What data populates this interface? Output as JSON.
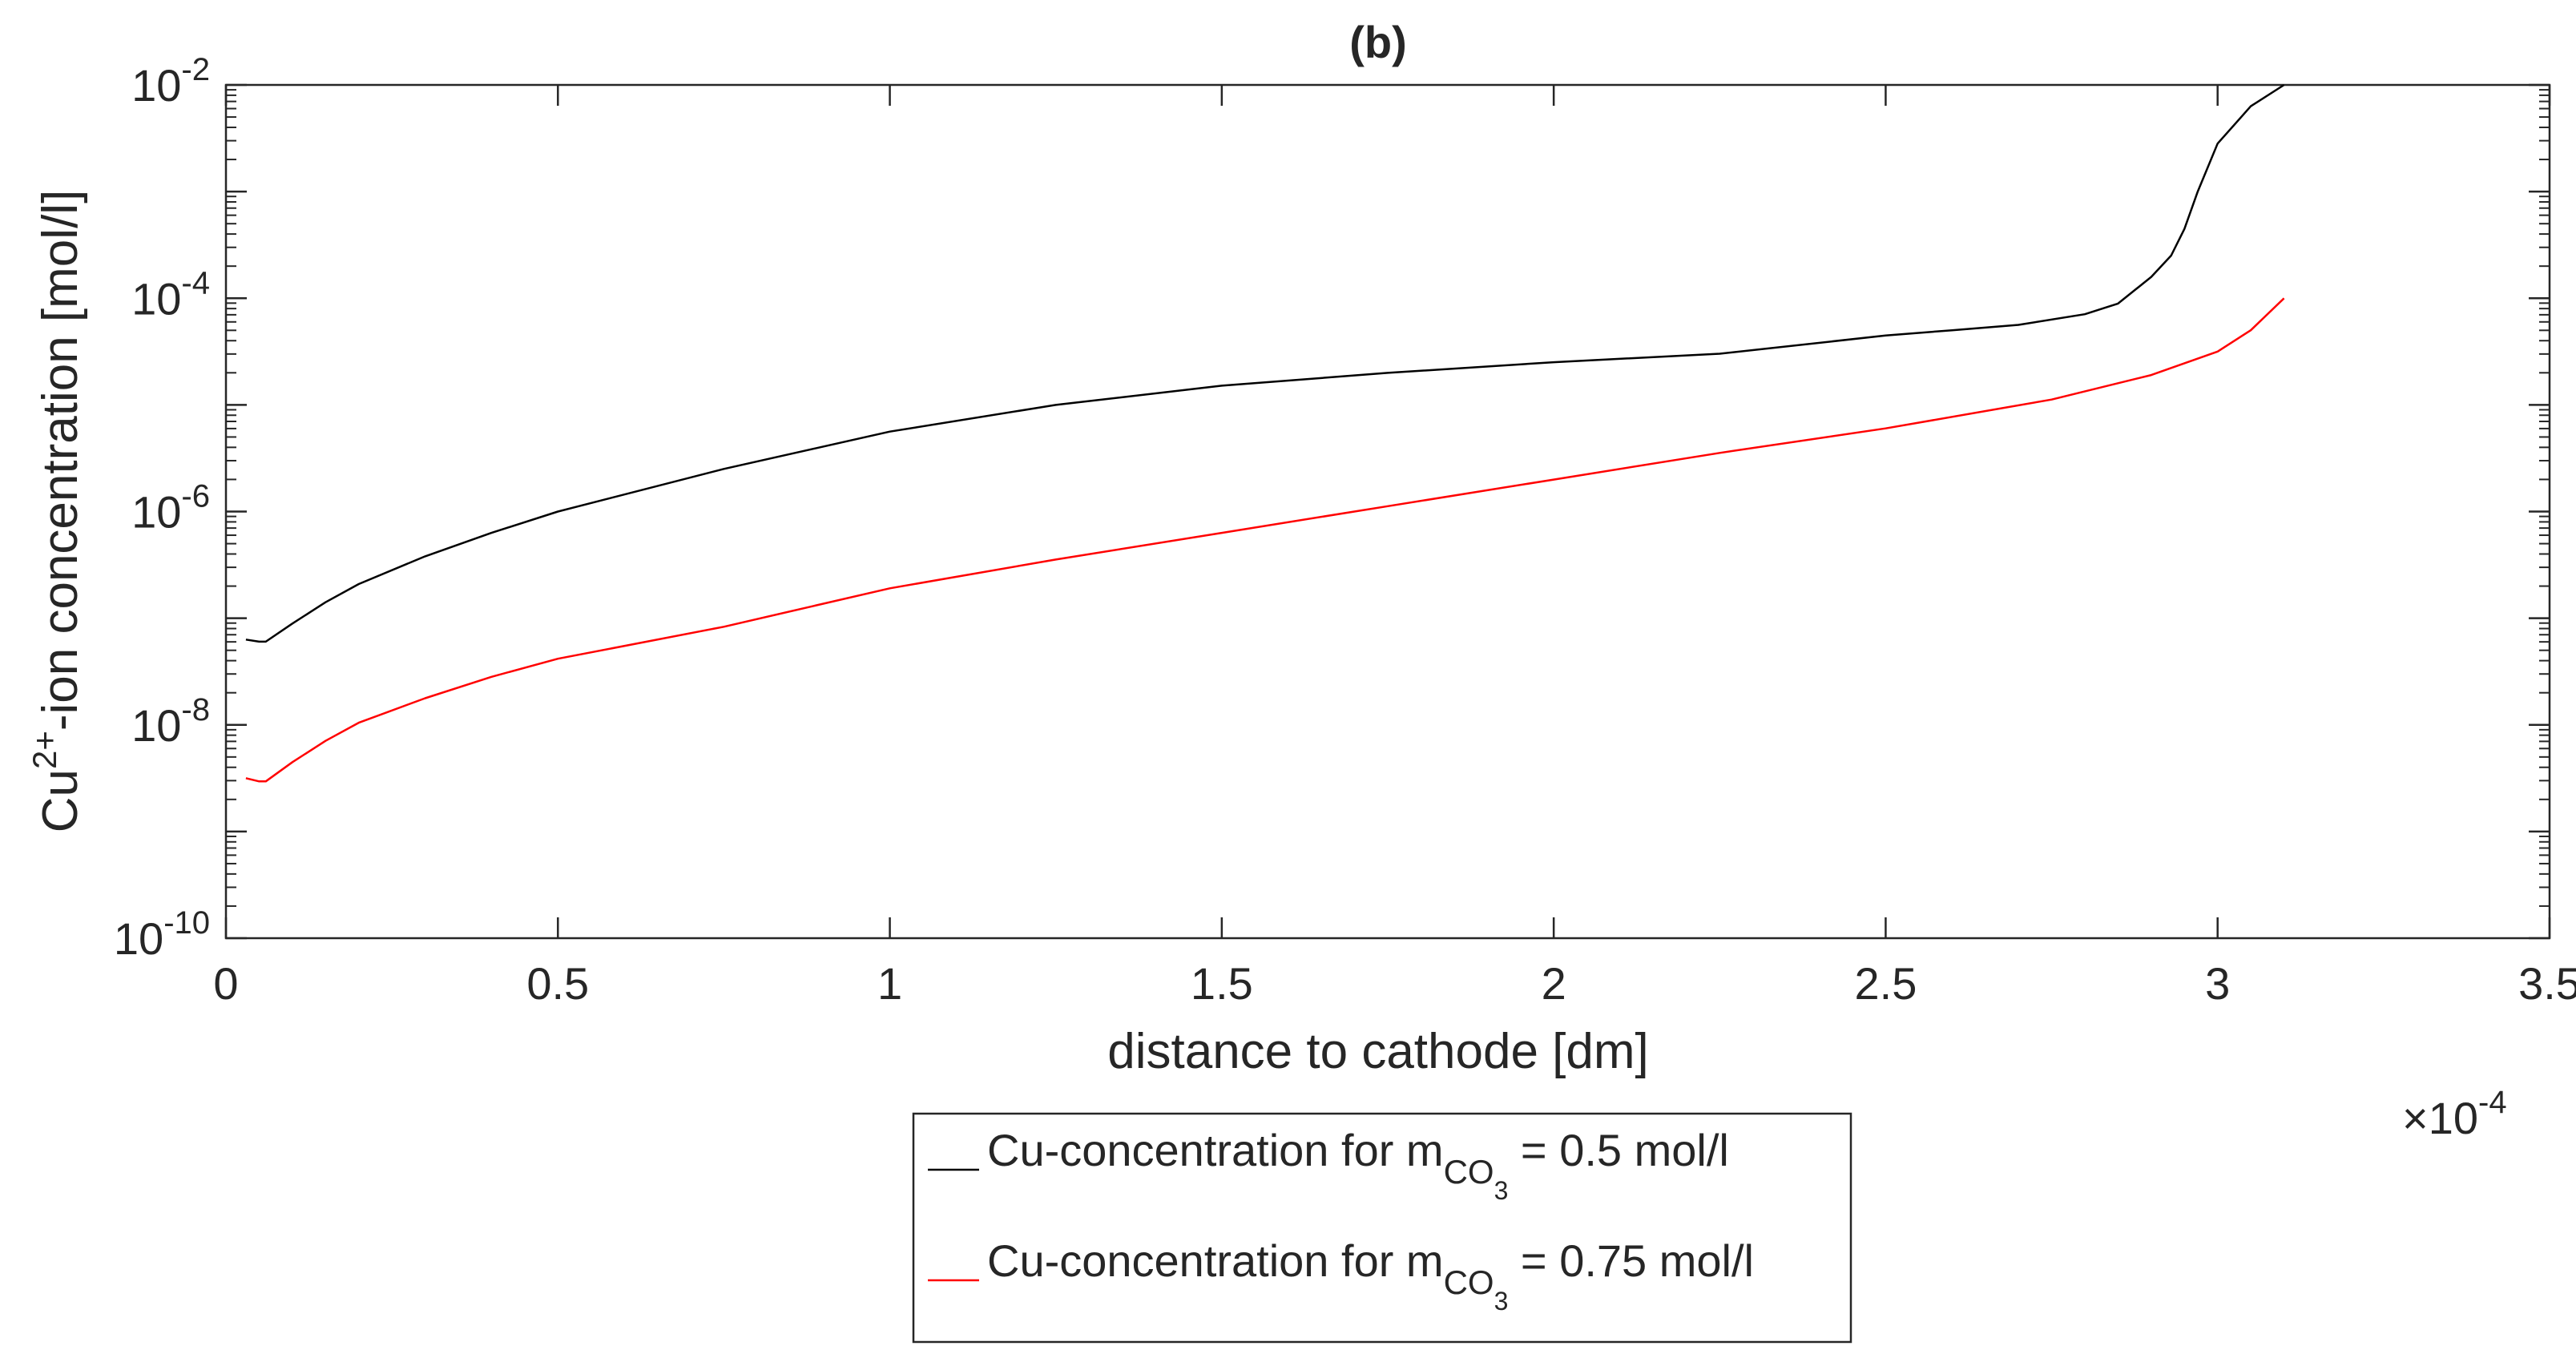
{
  "chart_data": {
    "type": "line",
    "title": "(b)",
    "xlabel": "distance to cathode [dm]",
    "ylabel": {
      "prefix": "Cu",
      "superscript": "2+",
      "suffix": "-ion concentration [mol/l]"
    },
    "x_scale_label": {
      "times": "×10",
      "exponent": "-4"
    },
    "x_multiplier": 0.0001,
    "xlim": [
      0,
      3.5
    ],
    "ylim_log10": [
      -10,
      -2
    ],
    "yscale": "log",
    "x_ticks": [
      {
        "value": 0,
        "label": "0"
      },
      {
        "value": 0.5,
        "label": "0.5"
      },
      {
        "value": 1,
        "label": "1"
      },
      {
        "value": 1.5,
        "label": "1.5"
      },
      {
        "value": 2,
        "label": "2"
      },
      {
        "value": 2.5,
        "label": "2.5"
      },
      {
        "value": 3,
        "label": "3"
      },
      {
        "value": 3.5,
        "label": "3.5"
      }
    ],
    "y_ticks": [
      {
        "exp": -2,
        "base": "10",
        "sup": "-2"
      },
      {
        "exp": -4,
        "base": "10",
        "sup": "-4"
      },
      {
        "exp": -6,
        "base": "10",
        "sup": "-6"
      },
      {
        "exp": -8,
        "base": "10",
        "sup": "-8"
      },
      {
        "exp": -10,
        "base": "10",
        "sup": "-10"
      }
    ],
    "series": [
      {
        "name": "Cu-concentration for m_CO3 = 0.5 mol/l",
        "color": "#000000",
        "x": [
          0.03,
          0.05,
          0.06,
          0.1,
          0.15,
          0.2,
          0.3,
          0.4,
          0.5,
          0.75,
          1.0,
          1.25,
          1.5,
          1.75,
          2.0,
          2.25,
          2.5,
          2.6,
          2.7,
          2.8,
          2.85,
          2.9,
          2.93,
          2.95,
          2.97,
          3.0,
          3.05,
          3.1
        ],
        "log10_y": [
          -7.2,
          -7.22,
          -7.22,
          -7.05,
          -6.85,
          -6.68,
          -6.42,
          -6.2,
          -6.0,
          -5.6,
          -5.25,
          -5.0,
          -4.82,
          -4.7,
          -4.6,
          -4.52,
          -4.35,
          -4.3,
          -4.25,
          -4.15,
          -4.05,
          -3.8,
          -3.6,
          -3.35,
          -3.0,
          -2.55,
          -2.2,
          -2.0
        ]
      },
      {
        "name": "Cu-concentration for m_CO3 = 0.75 mol/l",
        "color": "#ff0000",
        "x": [
          0.03,
          0.05,
          0.06,
          0.1,
          0.15,
          0.2,
          0.3,
          0.4,
          0.5,
          0.75,
          1.0,
          1.25,
          1.5,
          1.75,
          2.0,
          2.25,
          2.5,
          2.75,
          2.9,
          3.0,
          3.05,
          3.1
        ],
        "log10_y": [
          -8.5,
          -8.53,
          -8.53,
          -8.35,
          -8.15,
          -7.98,
          -7.75,
          -7.55,
          -7.38,
          -7.08,
          -6.72,
          -6.45,
          -6.2,
          -5.95,
          -5.7,
          -5.45,
          -5.22,
          -4.95,
          -4.72,
          -4.5,
          -4.3,
          -4.0
        ]
      }
    ],
    "legend": {
      "placement": "below",
      "entries": [
        {
          "color": "#000000",
          "prefix": "Cu-concentration for m",
          "sub": "CO",
          "subsub": "3",
          "suffix": " = 0.5 mol/l"
        },
        {
          "color": "#ff0000",
          "prefix": "Cu-concentration for m",
          "sub": "CO",
          "subsub": "3",
          "suffix": " = 0.75 mol/l"
        }
      ]
    },
    "grid": false
  }
}
